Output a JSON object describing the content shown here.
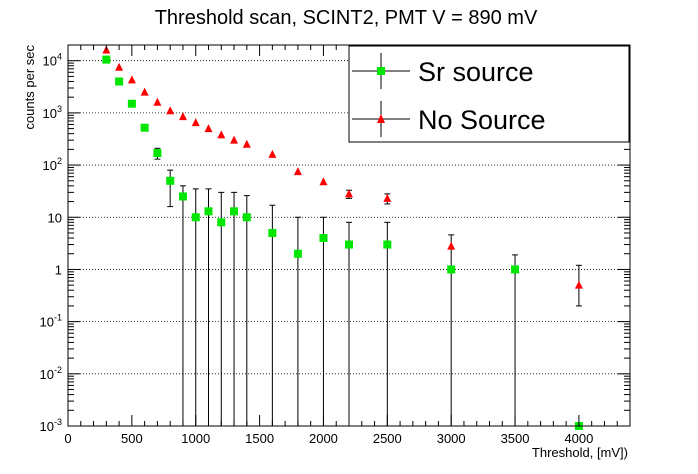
{
  "chart_data": {
    "type": "scatter",
    "title": "Threshold scan, SCINT2, PMT V = 890 mV",
    "xlabel": "Threshold, [mV])",
    "ylabel": "counts per sec",
    "xlim": [
      0,
      4400
    ],
    "ylim": [
      0.001,
      20000
    ],
    "y_scale": "log",
    "grid": "horizontal dotted at decades",
    "legend_position": "top-right",
    "x_ticks": [
      0,
      500,
      1000,
      1500,
      2000,
      2500,
      3000,
      3500,
      4000
    ],
    "x_tick_labels": [
      "0",
      "500",
      "1000",
      "1500",
      "2000",
      "2500",
      "3000",
      "3500",
      "4000"
    ],
    "y_ticks": [
      {
        "value": 0.001,
        "base": "10",
        "exp": "-3"
      },
      {
        "value": 0.01,
        "base": "10",
        "exp": "-2"
      },
      {
        "value": 0.1,
        "base": "10",
        "exp": "-1"
      },
      {
        "value": 1,
        "base": "1",
        "exp": ""
      },
      {
        "value": 10,
        "base": "10",
        "exp": ""
      },
      {
        "value": 100,
        "base": "10",
        "exp": "2"
      },
      {
        "value": 1000,
        "base": "10",
        "exp": "3"
      },
      {
        "value": 10000,
        "base": "10",
        "exp": "4"
      }
    ],
    "series": [
      {
        "name": "Sr source",
        "marker": "square",
        "color": "#00e600",
        "points": [
          {
            "x": 300,
            "y": 10500,
            "err_lo": 0,
            "err_hi": 0
          },
          {
            "x": 400,
            "y": 4000,
            "err_lo": 0,
            "err_hi": 0
          },
          {
            "x": 500,
            "y": 1500,
            "err_lo": 0,
            "err_hi": 0
          },
          {
            "x": 600,
            "y": 520,
            "err_lo": 0,
            "err_hi": 0
          },
          {
            "x": 700,
            "y": 170,
            "err_lo": 40,
            "err_hi": 40
          },
          {
            "x": 800,
            "y": 50,
            "err_lo": 34,
            "err_hi": 30
          },
          {
            "x": 900,
            "y": 25,
            "err_lo": 25,
            "err_hi": 15
          },
          {
            "x": 1000,
            "y": 10,
            "err_lo": 10,
            "err_hi": 25
          },
          {
            "x": 1100,
            "y": 13,
            "err_lo": 13,
            "err_hi": 22
          },
          {
            "x": 1200,
            "y": 8,
            "err_lo": 8,
            "err_hi": 22
          },
          {
            "x": 1300,
            "y": 13,
            "err_lo": 13,
            "err_hi": 17
          },
          {
            "x": 1400,
            "y": 10,
            "err_lo": 10,
            "err_hi": 16
          },
          {
            "x": 1600,
            "y": 5,
            "err_lo": 5,
            "err_hi": 12
          },
          {
            "x": 1800,
            "y": 2,
            "err_lo": 2,
            "err_hi": 8
          },
          {
            "x": 2000,
            "y": 4,
            "err_lo": 4,
            "err_hi": 6
          },
          {
            "x": 2200,
            "y": 3,
            "err_lo": 3,
            "err_hi": 5
          },
          {
            "x": 2500,
            "y": 3,
            "err_lo": 3,
            "err_hi": 5
          },
          {
            "x": 3000,
            "y": 1,
            "err_lo": 1,
            "err_hi": 0
          },
          {
            "x": 3500,
            "y": 1,
            "err_lo": 1,
            "err_hi": 0.9
          },
          {
            "x": 4000,
            "y": 0.001,
            "err_lo": 0,
            "err_hi": 0
          }
        ]
      },
      {
        "name": "No Source",
        "marker": "triangle",
        "color": "#ff0000",
        "points": [
          {
            "x": 300,
            "y": 16000,
            "err_lo": 0,
            "err_hi": 0
          },
          {
            "x": 400,
            "y": 7500,
            "err_lo": 0,
            "err_hi": 0
          },
          {
            "x": 500,
            "y": 4300,
            "err_lo": 0,
            "err_hi": 0
          },
          {
            "x": 600,
            "y": 2500,
            "err_lo": 0,
            "err_hi": 0
          },
          {
            "x": 700,
            "y": 1600,
            "err_lo": 0,
            "err_hi": 0
          },
          {
            "x": 800,
            "y": 1100,
            "err_lo": 0,
            "err_hi": 0
          },
          {
            "x": 900,
            "y": 850,
            "err_lo": 0,
            "err_hi": 0
          },
          {
            "x": 1000,
            "y": 650,
            "err_lo": 0,
            "err_hi": 0
          },
          {
            "x": 1100,
            "y": 500,
            "err_lo": 0,
            "err_hi": 0
          },
          {
            "x": 1200,
            "y": 380,
            "err_lo": 0,
            "err_hi": 0
          },
          {
            "x": 1300,
            "y": 300,
            "err_lo": 0,
            "err_hi": 0
          },
          {
            "x": 1400,
            "y": 250,
            "err_lo": 0,
            "err_hi": 0
          },
          {
            "x": 1600,
            "y": 160,
            "err_lo": 0,
            "err_hi": 0
          },
          {
            "x": 1800,
            "y": 75,
            "err_lo": 0,
            "err_hi": 0
          },
          {
            "x": 2000,
            "y": 48,
            "err_lo": 0,
            "err_hi": 0
          },
          {
            "x": 2200,
            "y": 28,
            "err_lo": 5,
            "err_hi": 5
          },
          {
            "x": 2500,
            "y": 23,
            "err_lo": 5,
            "err_hi": 5
          },
          {
            "x": 3000,
            "y": 2.8,
            "err_lo": 1.8,
            "err_hi": 1.8
          },
          {
            "x": 4000,
            "y": 0.5,
            "err_lo": 0.3,
            "err_hi": 0.7
          }
        ]
      }
    ]
  }
}
